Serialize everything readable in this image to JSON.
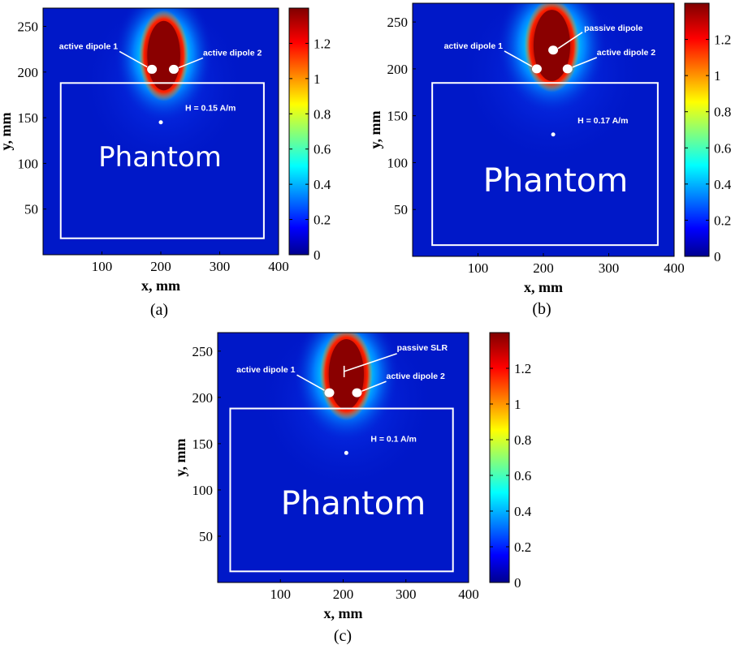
{
  "chart_data": [
    {
      "type": "heatmap",
      "panel_label": "(a)",
      "xlabel": "x, mm",
      "ylabel": "y, mm",
      "xticks": [
        100,
        200,
        300,
        400
      ],
      "yticks": [
        50,
        100,
        150,
        200,
        250
      ],
      "xlim": [
        0,
        400
      ],
      "ylim": [
        0,
        270
      ],
      "colorbar": {
        "ticks": [
          "0",
          "0.2",
          "0.4",
          "0.6",
          "0.8",
          "1",
          "1.2"
        ],
        "range": [
          0,
          1.4
        ]
      },
      "hotspot": {
        "x": 205,
        "y": 218
      },
      "phantom": {
        "label": "Phantom",
        "x0": 30,
        "x1": 375,
        "y0": 18,
        "y1": 188
      },
      "probe": {
        "x": 200,
        "y": 145
      },
      "annotations": [
        {
          "text": "active dipole 1",
          "x": 185,
          "y": 203
        },
        {
          "text": "active dipole 2",
          "x": 222,
          "y": 203
        },
        {
          "text": "H = 0.15 A/m",
          "x": 200,
          "y": 145
        }
      ]
    },
    {
      "type": "heatmap",
      "panel_label": "(b)",
      "xlabel": "x, mm",
      "ylabel": "y, mm",
      "xticks": [
        100,
        200,
        300,
        400
      ],
      "yticks": [
        50,
        100,
        150,
        200,
        250
      ],
      "xlim": [
        0,
        400
      ],
      "ylim": [
        0,
        270
      ],
      "colorbar": {
        "ticks": [
          "0",
          "0.2",
          "0.4",
          "0.6",
          "0.8",
          "1",
          "1.2"
        ],
        "range": [
          0,
          1.4
        ]
      },
      "hotspot": {
        "x": 213,
        "y": 225
      },
      "phantom": {
        "label": "Phantom",
        "x0": 30,
        "x1": 375,
        "y0": 12,
        "y1": 185
      },
      "probe": {
        "x": 215,
        "y": 130
      },
      "annotations": [
        {
          "text": "active dipole 1",
          "x": 190,
          "y": 200
        },
        {
          "text": "passive  dipole",
          "x": 215,
          "y": 220
        },
        {
          "text": "active dipole 2",
          "x": 237,
          "y": 200
        },
        {
          "text": "H = 0.17 A/m",
          "x": 215,
          "y": 130
        }
      ]
    },
    {
      "type": "heatmap",
      "panel_label": "(c)",
      "xlabel": "x, mm",
      "ylabel": "y, mm",
      "xticks": [
        100,
        200,
        300,
        400
      ],
      "yticks": [
        50,
        100,
        150,
        200,
        250
      ],
      "xlim": [
        0,
        400
      ],
      "ylim": [
        0,
        270
      ],
      "colorbar": {
        "ticks": [
          "0",
          "0.2",
          "0.4",
          "0.6",
          "0.8",
          "1",
          "1.2"
        ],
        "range": [
          0,
          1.4
        ]
      },
      "hotspot": {
        "x": 205,
        "y": 225
      },
      "phantom": {
        "label": "Phantom",
        "x0": 20,
        "x1": 375,
        "y0": 12,
        "y1": 188
      },
      "probe": {
        "x": 205,
        "y": 140
      },
      "annotations": [
        {
          "text": "active dipole 1",
          "x": 178,
          "y": 205
        },
        {
          "text": "passive SLR",
          "x": 208,
          "y": 228
        },
        {
          "text": "active dipole 2",
          "x": 222,
          "y": 205
        },
        {
          "text": "H = 0.1 A/m",
          "x": 205,
          "y": 140
        }
      ]
    }
  ]
}
